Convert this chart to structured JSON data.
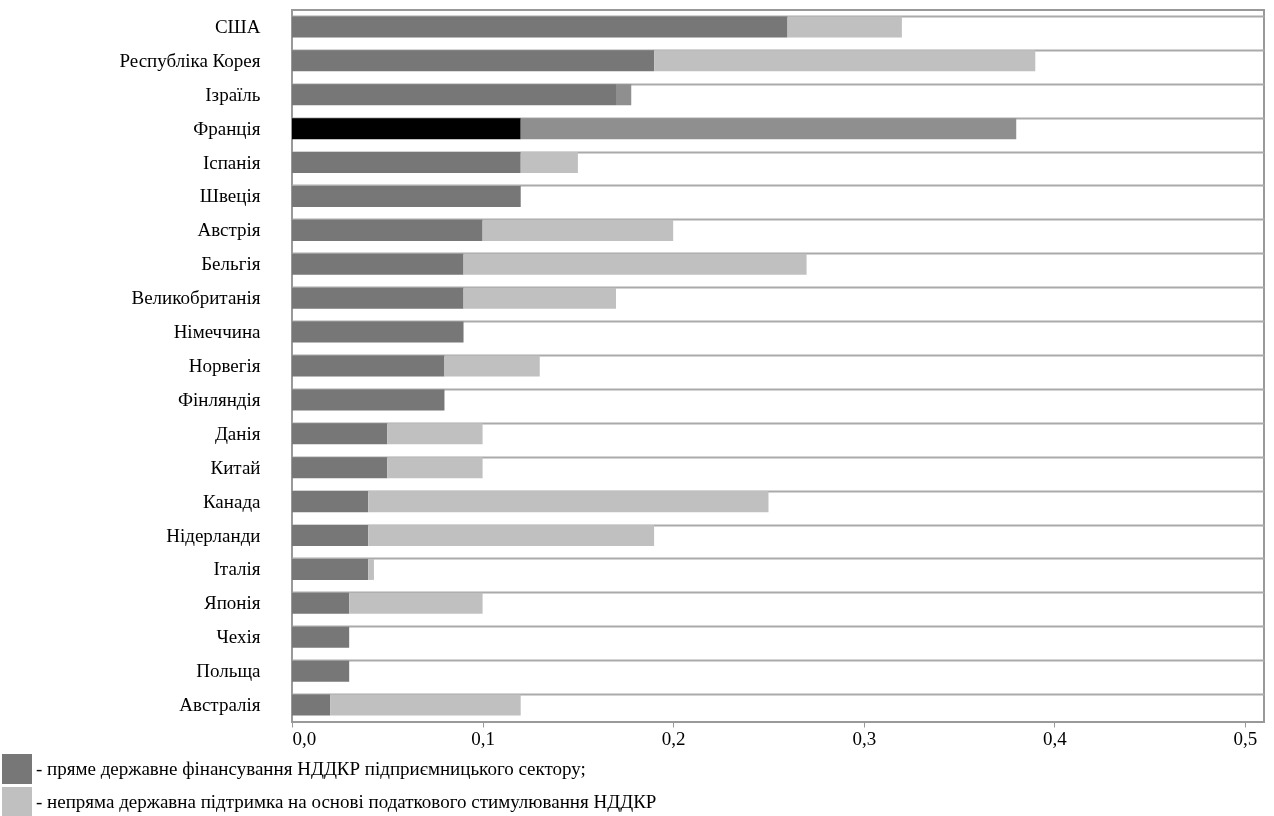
{
  "chart_data": {
    "type": "bar",
    "orientation": "horizontal",
    "stacked": true,
    "categories": [
      "США",
      "Республіка Корея",
      "Ізраїль",
      "Франція",
      "Іспанія",
      "Швеція",
      "Австрія",
      "Бельгія",
      "Великобританія",
      "Німеччина",
      "Норвегія",
      "Фінляндія",
      "Данія",
      "Китай",
      "Канада",
      "Нідерланди",
      "Італія",
      "Японія",
      "Чехія",
      "Польща",
      "Австралія"
    ],
    "series": [
      {
        "name": "- пряме державне фінансування НДДКР підприємницького сектору;",
        "color": "#777777",
        "colors": [
          "#777777",
          "#777777",
          "#777777",
          "#000000",
          "#777777",
          "#777777",
          "#777777",
          "#777777",
          "#777777",
          "#777777",
          "#777777",
          "#777777",
          "#777777",
          "#777777",
          "#777777",
          "#777777",
          "#777777",
          "#777777",
          "#777777",
          "#777777",
          "#777777"
        ],
        "values": [
          0.26,
          0.19,
          0.17,
          0.12,
          0.12,
          0.12,
          0.1,
          0.09,
          0.09,
          0.09,
          0.08,
          0.08,
          0.05,
          0.05,
          0.04,
          0.04,
          0.04,
          0.03,
          0.03,
          0.03,
          0.02
        ]
      },
      {
        "name": "- непряма державна підтримка на основі податкового стимулювання НДДКР",
        "color": "#c0c0c0",
        "colors": [
          "#c0c0c0",
          "#c0c0c0",
          "#8f8f8f",
          "#8f8f8f",
          "#c0c0c0",
          "#c0c0c0",
          "#c0c0c0",
          "#c0c0c0",
          "#c0c0c0",
          "#c0c0c0",
          "#c0c0c0",
          "#c0c0c0",
          "#c0c0c0",
          "#c0c0c0",
          "#c0c0c0",
          "#c0c0c0",
          "#c0c0c0",
          "#c0c0c0",
          "#c0c0c0",
          "#c0c0c0",
          "#c0c0c0"
        ],
        "values": [
          0.06,
          0.2,
          0.008,
          0.26,
          0.03,
          0,
          0.1,
          0.18,
          0.08,
          0,
          0.05,
          0,
          0.05,
          0.05,
          0.21,
          0.15,
          0.003,
          0.07,
          0,
          0,
          0.1
        ]
      }
    ],
    "xlim": [
      0,
      0.51
    ],
    "xticks": [
      {
        "value": 0,
        "label": "0,0"
      },
      {
        "value": 0.1,
        "label": "0,1"
      },
      {
        "value": 0.2,
        "label": "0,2"
      },
      {
        "value": 0.3,
        "label": "0,3"
      },
      {
        "value": 0.4,
        "label": "0,4"
      },
      {
        "value": 0.5,
        "label": "0,5"
      }
    ],
    "grid": "y",
    "legend": "bottom"
  }
}
